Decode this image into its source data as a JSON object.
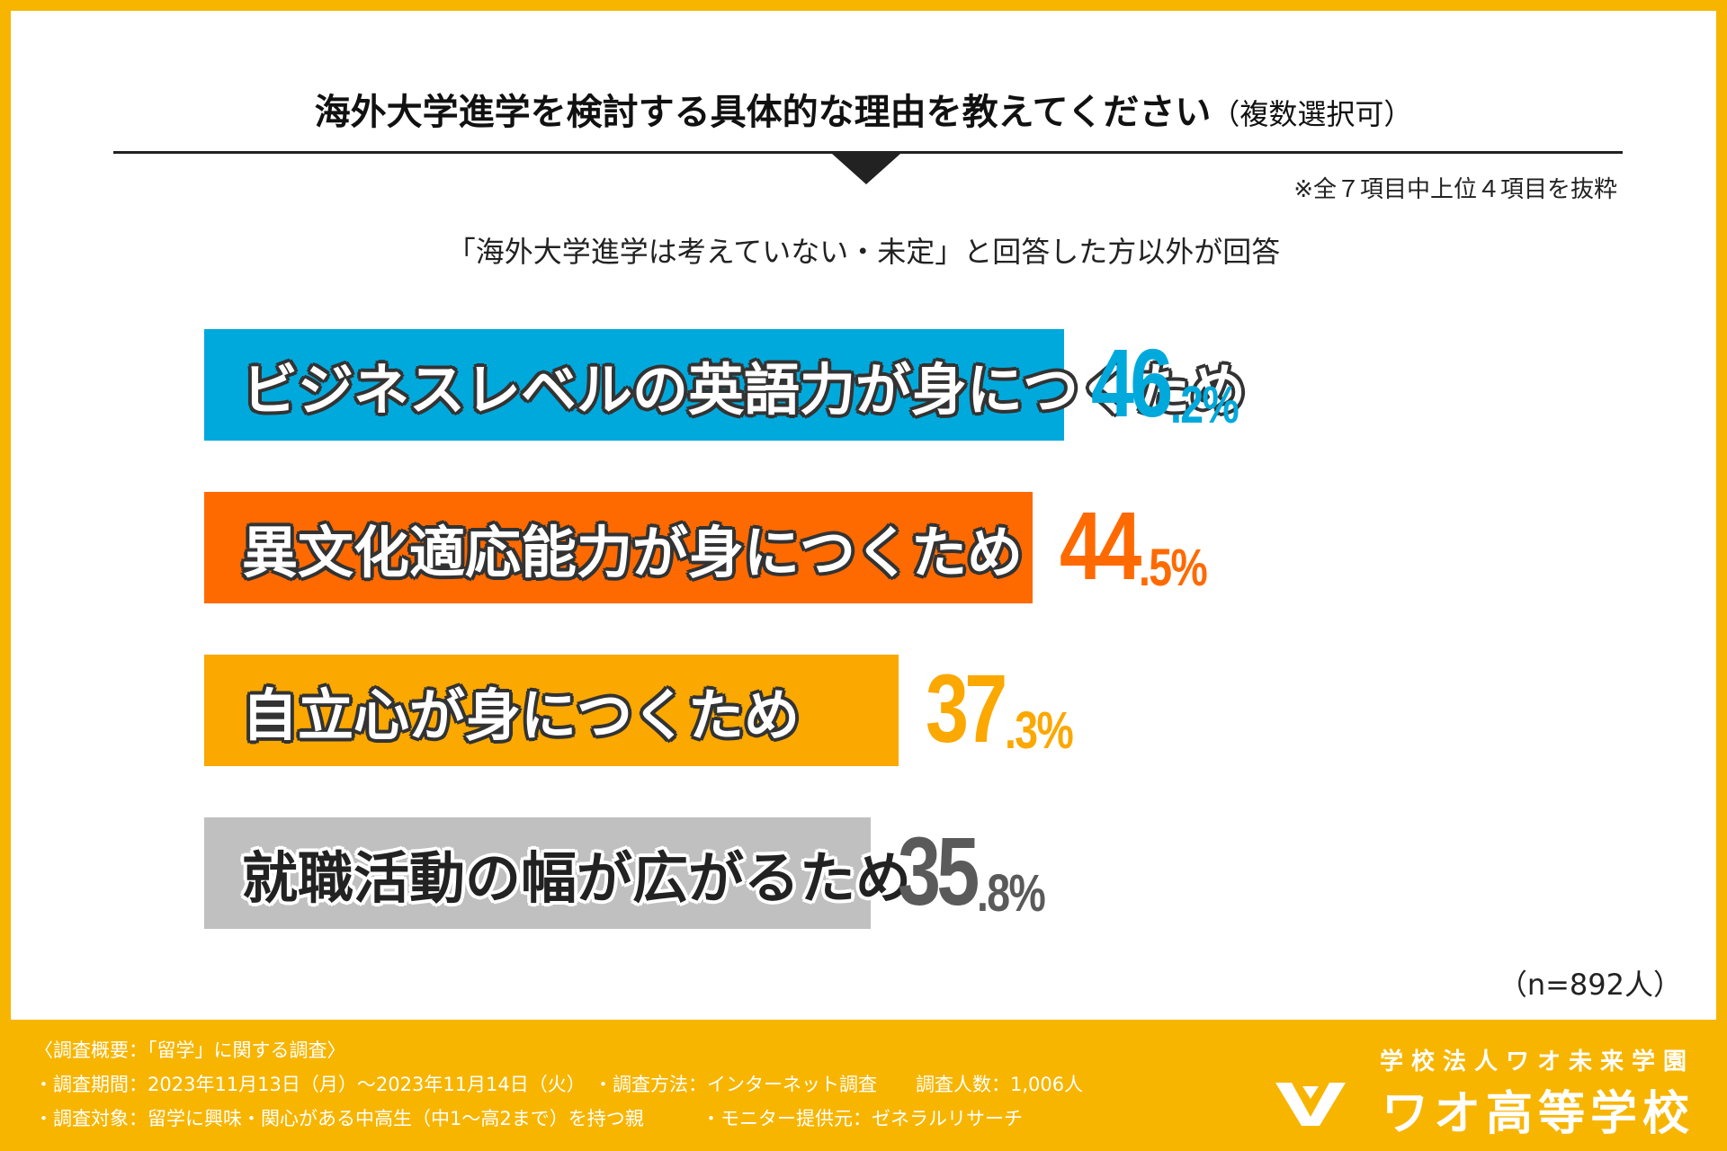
{
  "header": {
    "title_main": "海外大学進学を検討する具体的な理由を教えてください",
    "title_paren": "（複数選択可）",
    "note": "※全７項目中上位４項目を抜粋",
    "subtitle": "「海外大学進学は考えていない・未定」と回答した方以外が回答"
  },
  "colors": {
    "frame": "#f7b500",
    "bar1": "#00a9dc",
    "bar2": "#ff6a00",
    "bar3": "#fba800",
    "bar4": "#c0c0c0",
    "pct4": "#5a5a5a"
  },
  "chart_data": {
    "type": "bar",
    "orientation": "horizontal",
    "title": "海外大学進学を検討する具体的な理由を教えてください（複数選択可）",
    "categories": [
      "ビジネスレベルの英語力が身につくため",
      "異文化適応能力が身につくため",
      "自立心が身につくため",
      "就職活動の幅が広がるため"
    ],
    "values": [
      46.2,
      44.5,
      37.3,
      35.8
    ],
    "unit": "%",
    "labels": [
      {
        "int": "46",
        "dec": ".2%"
      },
      {
        "int": "44",
        "dec": ".5%"
      },
      {
        "int": "37",
        "dec": ".3%"
      },
      {
        "int": "35",
        "dec": ".8%"
      }
    ],
    "xlim": [
      0,
      58
    ],
    "n_label": "（n=892人）"
  },
  "footer": {
    "line1": "〈調査概要：「留学」に関する調査〉",
    "line2a": "・調査期間：2023年11月13日（月）～2023年11月14日（火）",
    "line2b": "・調査方法：インターネット調査",
    "line2c": "調査人数：1,006人",
    "line3a": "・調査対象：留学に興味・関心がある中高生（中1～高2まで）を持つ親",
    "line3b": "・モニター提供元：ゼネラルリサーチ",
    "org": "学校法人ワオ未来学園",
    "school": "ワオ高等学校"
  }
}
